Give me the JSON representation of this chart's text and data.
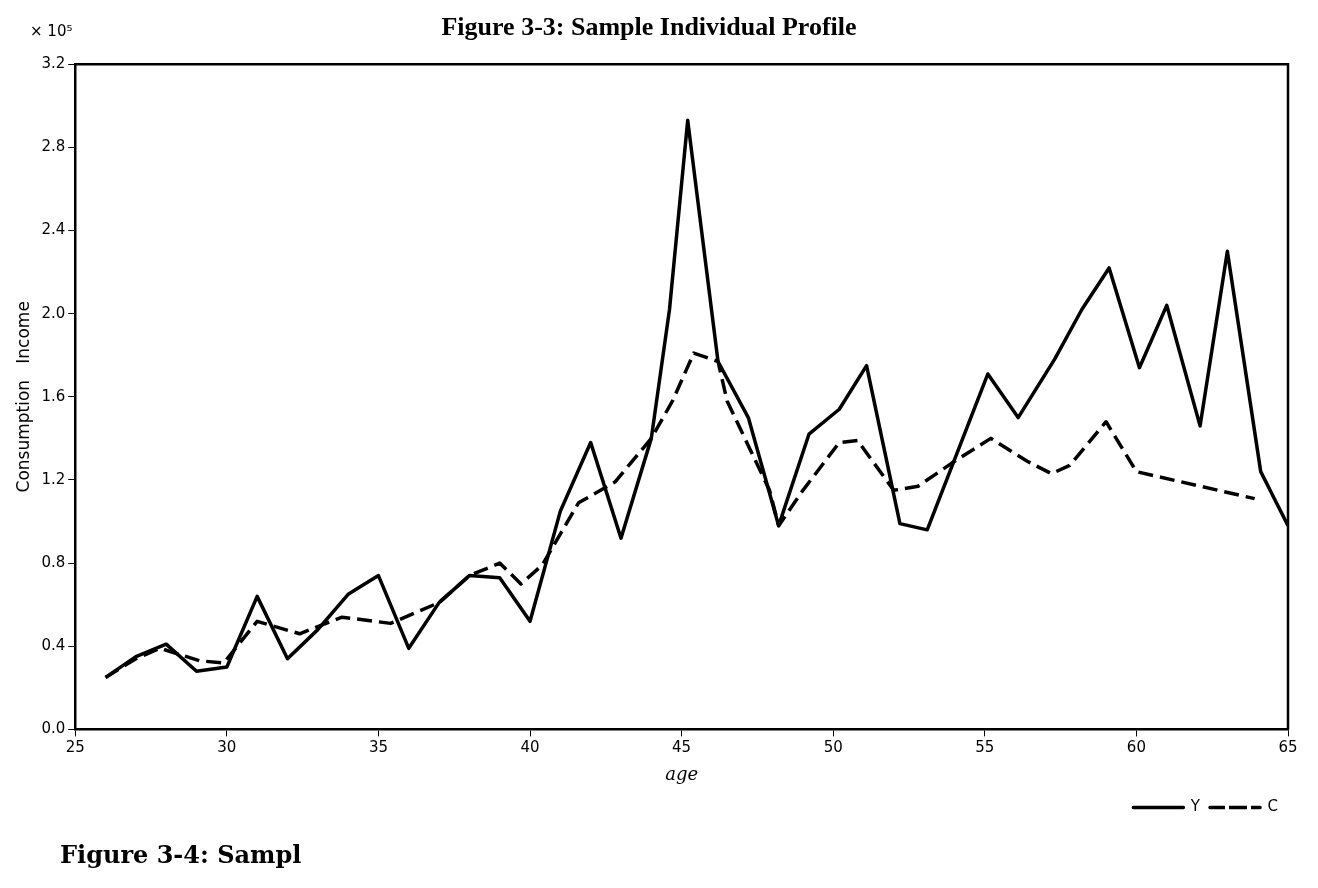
{
  "chart_data": {
    "type": "line",
    "title": "Figure 3-3: Sample Individual Profile",
    "xlabel": "age",
    "ylabel": "Consumption   Income",
    "annotations": [
      "× 10⁵",
      "Figure 3-4: Sampl"
    ],
    "xlim": [
      25,
      65
    ],
    "xticks": [
      25,
      30,
      35,
      40,
      45,
      50,
      55,
      60,
      65
    ],
    "ylim": [
      0,
      3.2
    ],
    "yticks": [
      {
        "value": 0,
        "label": "0.0"
      },
      0.4,
      0.8,
      1.2,
      1.6,
      {
        "value": 2,
        "label": "2.0"
      },
      2.4,
      2.8,
      3.2
    ],
    "grid": false,
    "legend": "bottom right",
    "marker": "none",
    "series": [
      {
        "name": "Y",
        "color": "#000000",
        "line_style": "solid",
        "x": [
          26,
          27,
          28,
          29,
          30,
          31,
          32,
          33,
          34,
          35,
          36,
          37,
          38,
          39,
          40,
          41,
          42,
          43,
          44,
          44.6,
          45.2,
          46.2,
          47.2,
          48.2,
          49.2,
          50.2,
          51.1,
          52.2,
          53.1,
          55.1,
          56.1,
          57.3,
          58.2,
          59.1,
          60.1,
          61,
          62.1,
          63,
          64.1,
          65
        ],
        "values": [
          0.25,
          0.35,
          0.41,
          0.28,
          0.3,
          0.64,
          0.34,
          0.48,
          0.65,
          0.74,
          0.39,
          0.61,
          0.74,
          0.73,
          0.52,
          1.05,
          1.38,
          0.92,
          1.4,
          2.02,
          2.93,
          1.77,
          1.5,
          0.98,
          1.42,
          1.54,
          1.75,
          0.99,
          0.96,
          1.71,
          1.5,
          1.78,
          2.02,
          2.22,
          1.74,
          2.04,
          1.46,
          2.3,
          1.24,
          0.98
        ]
      },
      {
        "name": "C",
        "color": "#000000",
        "line_style": "dashed",
        "x": [
          26,
          27,
          27.8,
          29.1,
          29.9,
          31,
          32.4,
          33.8,
          35.4,
          37,
          38,
          39,
          39.7,
          40.4,
          41.6,
          42.8,
          44,
          44.7,
          45.4,
          46.2,
          46.5,
          47.9,
          48.2,
          49,
          50.2,
          50.8,
          52,
          52.8,
          53.9,
          55.2,
          56.4,
          57.2,
          57.8,
          59,
          60,
          63.9
        ],
        "values": [
          0.25,
          0.34,
          0.39,
          0.33,
          0.32,
          0.52,
          0.46,
          0.54,
          0.51,
          0.61,
          0.74,
          0.8,
          0.7,
          0.79,
          1.09,
          1.19,
          1.4,
          1.58,
          1.81,
          1.77,
          1.58,
          1.15,
          0.98,
          1.15,
          1.38,
          1.39,
          1.15,
          1.17,
          1.28,
          1.4,
          1.29,
          1.23,
          1.27,
          1.48,
          1.24,
          1.11
        ]
      }
    ]
  }
}
